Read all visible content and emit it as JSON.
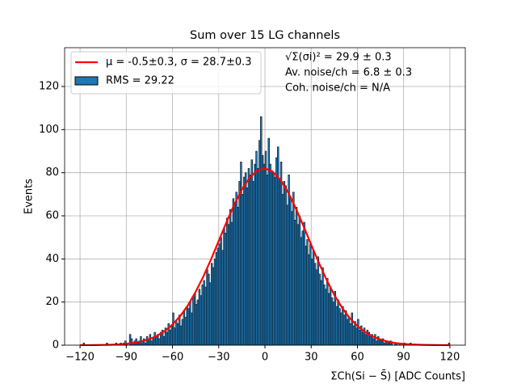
{
  "chart_data": {
    "type": "histogram",
    "title": "Sum over 15 LG channels",
    "xlabel": "ΣCh(Si − S̄) [ADC Counts]",
    "ylabel": "Events",
    "annotations": [
      "√Σ(σi)² = 29.9 ± 0.3",
      "Av. noise/ch = 6.8 ± 0.3",
      "Coh. noise/ch = N/A"
    ],
    "grid": true,
    "legend": "upper left",
    "xlim": [
      -130,
      130
    ],
    "ylim": [
      0,
      138
    ],
    "xticks": [
      {
        "value": -120,
        "label": "−120"
      },
      {
        "value": -90,
        "label": "−90"
      },
      {
        "value": -60,
        "label": "−60"
      },
      {
        "value": -30,
        "label": "−30"
      },
      0,
      30,
      60,
      90,
      120
    ],
    "yticks": [
      0,
      20,
      40,
      60,
      80,
      100,
      120
    ],
    "histogram": {
      "name": "RMS = 29.22",
      "color": "#1f77b4",
      "edgecolor": "#000000",
      "bins": [
        -120,
        -119,
        -118,
        -117,
        -116,
        -115,
        -114,
        -113,
        -112,
        -111,
        -110,
        -109,
        -108,
        -107,
        -106,
        -105,
        -104,
        -103,
        -102,
        -101,
        -100,
        -99,
        -98,
        -97,
        -96,
        -95,
        -94,
        -93,
        -92,
        -91,
        -90,
        -89,
        -88,
        -87,
        -86,
        -85,
        -84,
        -83,
        -82,
        -81,
        -80,
        -79,
        -78,
        -77,
        -76,
        -75,
        -74,
        -73,
        -72,
        -71,
        -70,
        -69,
        -68,
        -67,
        -66,
        -65,
        -64,
        -63,
        -62,
        -61,
        -60,
        -59,
        -58,
        -57,
        -56,
        -55,
        -54,
        -53,
        -52,
        -51,
        -50,
        -49,
        -48,
        -47,
        -46,
        -45,
        -44,
        -43,
        -42,
        -41,
        -40,
        -39,
        -38,
        -37,
        -36,
        -35,
        -34,
        -33,
        -32,
        -31,
        -30,
        -29,
        -28,
        -27,
        -26,
        -25,
        -24,
        -23,
        -22,
        -21,
        -20,
        -19,
        -18,
        -17,
        -16,
        -15,
        -14,
        -13,
        -12,
        -11,
        -10,
        -9,
        -8,
        -7,
        -6,
        -5,
        -4,
        -3,
        -2,
        -1,
        0,
        1,
        2,
        3,
        4,
        5,
        6,
        7,
        8,
        9,
        10,
        11,
        12,
        13,
        14,
        15,
        16,
        17,
        18,
        19,
        20,
        21,
        22,
        23,
        24,
        25,
        26,
        27,
        28,
        29,
        30,
        31,
        32,
        33,
        34,
        35,
        36,
        37,
        38,
        39,
        40,
        41,
        42,
        43,
        44,
        45,
        46,
        47,
        48,
        49,
        50,
        51,
        52,
        53,
        54,
        55,
        56,
        57,
        58,
        59,
        60,
        61,
        62,
        63,
        64,
        65,
        66,
        67,
        68,
        69,
        70,
        71,
        72,
        73,
        74,
        75,
        76,
        77,
        78,
        79,
        80,
        81,
        82,
        83,
        84,
        85,
        86,
        87,
        88,
        89,
        90,
        91,
        92,
        93,
        94,
        95,
        96,
        97,
        98,
        99,
        100,
        101,
        102,
        103,
        104,
        105,
        106,
        107,
        108,
        109,
        110,
        111,
        112,
        113,
        114,
        115,
        116,
        117,
        118,
        119,
        120
      ],
      "counts": [
        0,
        0,
        1,
        0,
        0,
        0,
        0,
        0,
        0,
        0,
        0,
        0,
        0,
        0,
        0,
        0,
        0,
        1,
        0,
        0,
        0,
        0,
        0,
        1,
        0,
        0,
        1,
        0,
        1,
        2,
        1,
        0,
        5,
        3,
        1,
        2,
        3,
        1,
        2,
        4,
        2,
        3,
        1,
        4,
        3,
        5,
        2,
        3,
        6,
        4,
        5,
        3,
        6,
        7,
        4,
        8,
        6,
        10,
        7,
        9,
        15,
        8,
        11,
        10,
        14,
        9,
        12,
        16,
        13,
        18,
        17,
        20,
        15,
        22,
        24,
        19,
        21,
        26,
        23,
        28,
        30,
        27,
        35,
        33,
        29,
        38,
        36,
        40,
        43,
        45,
        47,
        50,
        44,
        54,
        52,
        59,
        56,
        63,
        57,
        68,
        66,
        71,
        64,
        76,
        85,
        70,
        78,
        80,
        73,
        82,
        79,
        86,
        76,
        84,
        90,
        82,
        95,
        106,
        88,
        84,
        90,
        79,
        96,
        84,
        81,
        80,
        78,
        87,
        92,
        77,
        85,
        70,
        76,
        74,
        65,
        79,
        69,
        62,
        71,
        58,
        64,
        56,
        60,
        50,
        53,
        57,
        46,
        49,
        42,
        47,
        40,
        44,
        38,
        35,
        41,
        33,
        30,
        36,
        28,
        26,
        31,
        24,
        27,
        22,
        20,
        25,
        18,
        21,
        17,
        15,
        18,
        14,
        16,
        12,
        13,
        10,
        15,
        9,
        11,
        8,
        12,
        7,
        9,
        6,
        8,
        5,
        7,
        6,
        4,
        5,
        3,
        5,
        2,
        4,
        3,
        2,
        3,
        1,
        2,
        2,
        1,
        2,
        1,
        0,
        1,
        1,
        0,
        1,
        0,
        0,
        1,
        0,
        0,
        0,
        1,
        0,
        0,
        0,
        0,
        0,
        0,
        0,
        0,
        0,
        0,
        0,
        0,
        0,
        0,
        0,
        0,
        0,
        0,
        0,
        0,
        0,
        0,
        0,
        0,
        1
      ]
    },
    "series": [
      {
        "name": "μ = -0.5±0.3, σ = 28.7±0.3",
        "color": "#ff0000",
        "x": [
          -120,
          -115,
          -110,
          -105,
          -100,
          -95,
          -90,
          -85,
          -80,
          -75,
          -70,
          -65,
          -60,
          -55,
          -50,
          -45,
          -40,
          -35,
          -30,
          -25,
          -20,
          -15,
          -10,
          -5,
          0,
          5,
          10,
          15,
          20,
          25,
          30,
          35,
          40,
          45,
          50,
          55,
          60,
          65,
          70,
          75,
          80,
          85,
          90,
          95,
          100,
          105,
          110,
          115,
          120
        ],
        "values": [
          0.01,
          0.03,
          0.06,
          0.11,
          0.2,
          0.36,
          0.63,
          1.07,
          1.77,
          2.82,
          4.37,
          6.56,
          9.56,
          13.5,
          18.5,
          24.7,
          31.8,
          39.8,
          48.4,
          57.0,
          65.1,
          72.2,
          77.6,
          81.0,
          82.0,
          80.5,
          76.7,
          70.9,
          63.5,
          55.3,
          46.6,
          38.2,
          30.3,
          23.3,
          17.4,
          12.6,
          8.9,
          6.07,
          4.02,
          2.58,
          1.6,
          0.97,
          0.57,
          0.32,
          0.18,
          0.1,
          0.05,
          0.02,
          0.01
        ]
      }
    ]
  }
}
